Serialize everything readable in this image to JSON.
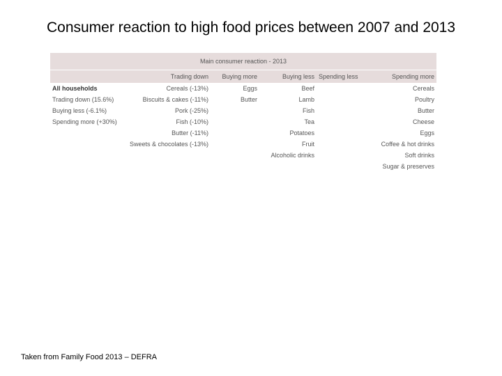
{
  "title": "Consumer reaction to high food prices between 2007 and 2013",
  "table": {
    "caption": "Main consumer reaction - 2013",
    "headers": [
      "",
      "Trading down",
      "Buying more",
      "Buying less",
      "Spending less",
      "Spending more"
    ],
    "rows": [
      [
        "All households",
        "Cereals (-13%)",
        "Eggs",
        "Beef",
        "",
        "Cereals"
      ],
      [
        "Trading down (15.6%)",
        "Biscuits & cakes (-11%)",
        "Butter",
        "Lamb",
        "",
        "Poultry"
      ],
      [
        "Buying less (-6.1%)",
        "Pork (-25%)",
        "",
        "Fish",
        "",
        "Butter"
      ],
      [
        "Spending more (+30%)",
        "Fish (-10%)",
        "",
        "Tea",
        "",
        "Cheese"
      ],
      [
        "",
        "Butter (-11%)",
        "",
        "Potatoes",
        "",
        "Eggs"
      ],
      [
        "",
        "Sweets & chocolates (-13%)",
        "",
        "Fruit",
        "",
        "Coffee & hot drinks"
      ],
      [
        "",
        "",
        "",
        "Alcoholic drinks",
        "",
        "Soft drinks"
      ],
      [
        "",
        "",
        "",
        "",
        "",
        "Sugar & preserves"
      ]
    ]
  },
  "footer": "Taken from Family Food 2013 – DEFRA",
  "colors": {
    "header_background": "#e6dcdc",
    "table_text": "#555555"
  }
}
